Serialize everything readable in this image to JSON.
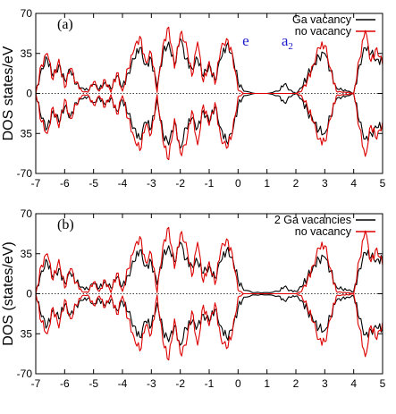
{
  "chart_data": [
    {
      "type": "line",
      "panel_label": "(a)",
      "ylabel": "DOS states/eV",
      "xlim": [
        -7,
        5
      ],
      "ylim": [
        -70,
        70
      ],
      "xticks": [
        "-7",
        "-6",
        "-5",
        "-4",
        "-3",
        "-2",
        "-1",
        "0",
        "1",
        "2",
        "3",
        "4",
        "5"
      ],
      "yticks": [
        "70",
        "35",
        "0",
        "35",
        "-70"
      ],
      "legend_position": "top-right",
      "annotations": [
        {
          "text": "e",
          "x": 0.15,
          "y": 42
        },
        {
          "text": "a",
          "sub": "2",
          "x": 1.5,
          "y": 42
        }
      ],
      "series": [
        {
          "name": "Ga vacancy",
          "color": "#000000",
          "x": [
            -7.0,
            -6.8,
            -6.6,
            -6.4,
            -6.2,
            -6.0,
            -5.8,
            -5.6,
            -5.4,
            -5.2,
            -5.0,
            -4.8,
            -4.6,
            -4.4,
            -4.2,
            -4.0,
            -3.8,
            -3.6,
            -3.4,
            -3.2,
            -3.0,
            -2.8,
            -2.6,
            -2.4,
            -2.2,
            -2.0,
            -1.8,
            -1.6,
            -1.4,
            -1.2,
            -1.0,
            -0.8,
            -0.6,
            -0.4,
            -0.2,
            0.0,
            0.2,
            0.6,
            1.0,
            1.4,
            1.6,
            1.8,
            2.0,
            2.2,
            2.4,
            2.6,
            2.8,
            3.0,
            3.2,
            3.4,
            3.6,
            3.8,
            4.0,
            4.2,
            4.4,
            4.6,
            4.8,
            5.0
          ],
          "y": [
            0,
            22,
            30,
            15,
            25,
            12,
            20,
            8,
            5,
            3,
            8,
            4,
            10,
            4,
            15,
            6,
            18,
            30,
            40,
            25,
            30,
            5,
            35,
            45,
            25,
            48,
            30,
            22,
            30,
            15,
            25,
            12,
            30,
            42,
            35,
            10,
            2,
            0,
            0,
            2,
            8,
            3,
            0,
            5,
            15,
            25,
            32,
            35,
            20,
            5,
            3,
            2,
            0,
            25,
            40,
            35,
            30,
            28
          ]
        },
        {
          "name": "no vacancy",
          "color": "#dd0000",
          "x": [
            -7.0,
            -6.8,
            -6.6,
            -6.4,
            -6.2,
            -6.0,
            -5.8,
            -5.6,
            -5.4,
            -5.2,
            -5.0,
            -4.8,
            -4.6,
            -4.4,
            -4.2,
            -4.0,
            -3.8,
            -3.6,
            -3.4,
            -3.2,
            -3.0,
            -2.8,
            -2.6,
            -2.4,
            -2.2,
            -2.0,
            -1.8,
            -1.6,
            -1.4,
            -1.2,
            -1.0,
            -0.8,
            -0.6,
            -0.4,
            -0.2,
            0.0,
            0.2,
            0.6,
            1.0,
            1.4,
            1.6,
            1.8,
            2.0,
            2.2,
            2.4,
            2.6,
            2.8,
            3.0,
            3.2,
            3.4,
            3.6,
            3.8,
            4.0,
            4.2,
            4.4,
            4.6,
            4.8,
            5.0
          ],
          "y": [
            0,
            25,
            35,
            12,
            30,
            5,
            22,
            10,
            2,
            1,
            10,
            2,
            12,
            1,
            18,
            2,
            22,
            38,
            50,
            28,
            35,
            1,
            42,
            58,
            22,
            52,
            45,
            15,
            45,
            10,
            28,
            8,
            38,
            48,
            35,
            3,
            0,
            0,
            0,
            0,
            0,
            0,
            0,
            2,
            12,
            25,
            40,
            42,
            22,
            2,
            1,
            1,
            0,
            30,
            55,
            28,
            40,
            25
          ]
        }
      ]
    },
    {
      "type": "line",
      "panel_label": "(b)",
      "ylabel": "DOS (states/eV)",
      "xlim": [
        -7,
        5
      ],
      "ylim": [
        -70,
        70
      ],
      "xticks": [
        "-7",
        "-6",
        "-5",
        "-4",
        "-3",
        "-2",
        "-1",
        "0",
        "1",
        "2",
        "3",
        "4",
        "5"
      ],
      "yticks": [
        "70",
        "35",
        "0",
        "35",
        "-70"
      ],
      "legend_position": "top-right",
      "series": [
        {
          "name": "2 Ga vacancies",
          "color": "#000000",
          "x": [
            -7.0,
            -6.8,
            -6.6,
            -6.4,
            -6.2,
            -6.0,
            -5.8,
            -5.6,
            -5.4,
            -5.2,
            -5.0,
            -4.8,
            -4.6,
            -4.4,
            -4.2,
            -4.0,
            -3.8,
            -3.6,
            -3.4,
            -3.2,
            -3.0,
            -2.8,
            -2.6,
            -2.4,
            -2.2,
            -2.0,
            -1.8,
            -1.6,
            -1.4,
            -1.2,
            -1.0,
            -0.8,
            -0.6,
            -0.4,
            -0.2,
            0.0,
            0.2,
            0.6,
            1.0,
            1.4,
            1.6,
            1.8,
            2.0,
            2.2,
            2.4,
            2.6,
            2.8,
            3.0,
            3.2,
            3.4,
            3.6,
            3.8,
            4.0,
            4.2,
            4.4,
            4.6,
            4.8,
            5.0
          ],
          "y": [
            0,
            20,
            28,
            14,
            22,
            10,
            18,
            10,
            6,
            4,
            9,
            5,
            11,
            5,
            14,
            7,
            16,
            28,
            38,
            24,
            28,
            8,
            32,
            42,
            28,
            45,
            30,
            25,
            28,
            18,
            24,
            14,
            28,
            38,
            32,
            12,
            3,
            1,
            1,
            2,
            6,
            3,
            2,
            6,
            14,
            24,
            30,
            32,
            20,
            6,
            4,
            3,
            2,
            22,
            36,
            32,
            30,
            30
          ]
        },
        {
          "name": "no vacancy",
          "color": "#dd0000",
          "x": [
            -7.0,
            -6.8,
            -6.6,
            -6.4,
            -6.2,
            -6.0,
            -5.8,
            -5.6,
            -5.4,
            -5.2,
            -5.0,
            -4.8,
            -4.6,
            -4.4,
            -4.2,
            -4.0,
            -3.8,
            -3.6,
            -3.4,
            -3.2,
            -3.0,
            -2.8,
            -2.6,
            -2.4,
            -2.2,
            -2.0,
            -1.8,
            -1.6,
            -1.4,
            -1.2,
            -1.0,
            -0.8,
            -0.6,
            -0.4,
            -0.2,
            0.0,
            0.2,
            0.6,
            1.0,
            1.4,
            1.6,
            1.8,
            2.0,
            2.2,
            2.4,
            2.6,
            2.8,
            3.0,
            3.2,
            3.4,
            3.6,
            3.8,
            4.0,
            4.2,
            4.4,
            4.6,
            4.8,
            5.0
          ],
          "y": [
            0,
            25,
            35,
            12,
            30,
            5,
            22,
            10,
            2,
            1,
            10,
            2,
            12,
            1,
            18,
            2,
            22,
            38,
            50,
            28,
            35,
            1,
            42,
            58,
            22,
            52,
            45,
            15,
            45,
            10,
            28,
            8,
            38,
            48,
            35,
            3,
            0,
            0,
            0,
            0,
            0,
            0,
            0,
            2,
            12,
            25,
            40,
            42,
            22,
            2,
            1,
            1,
            0,
            30,
            55,
            28,
            40,
            25
          ]
        }
      ]
    }
  ]
}
